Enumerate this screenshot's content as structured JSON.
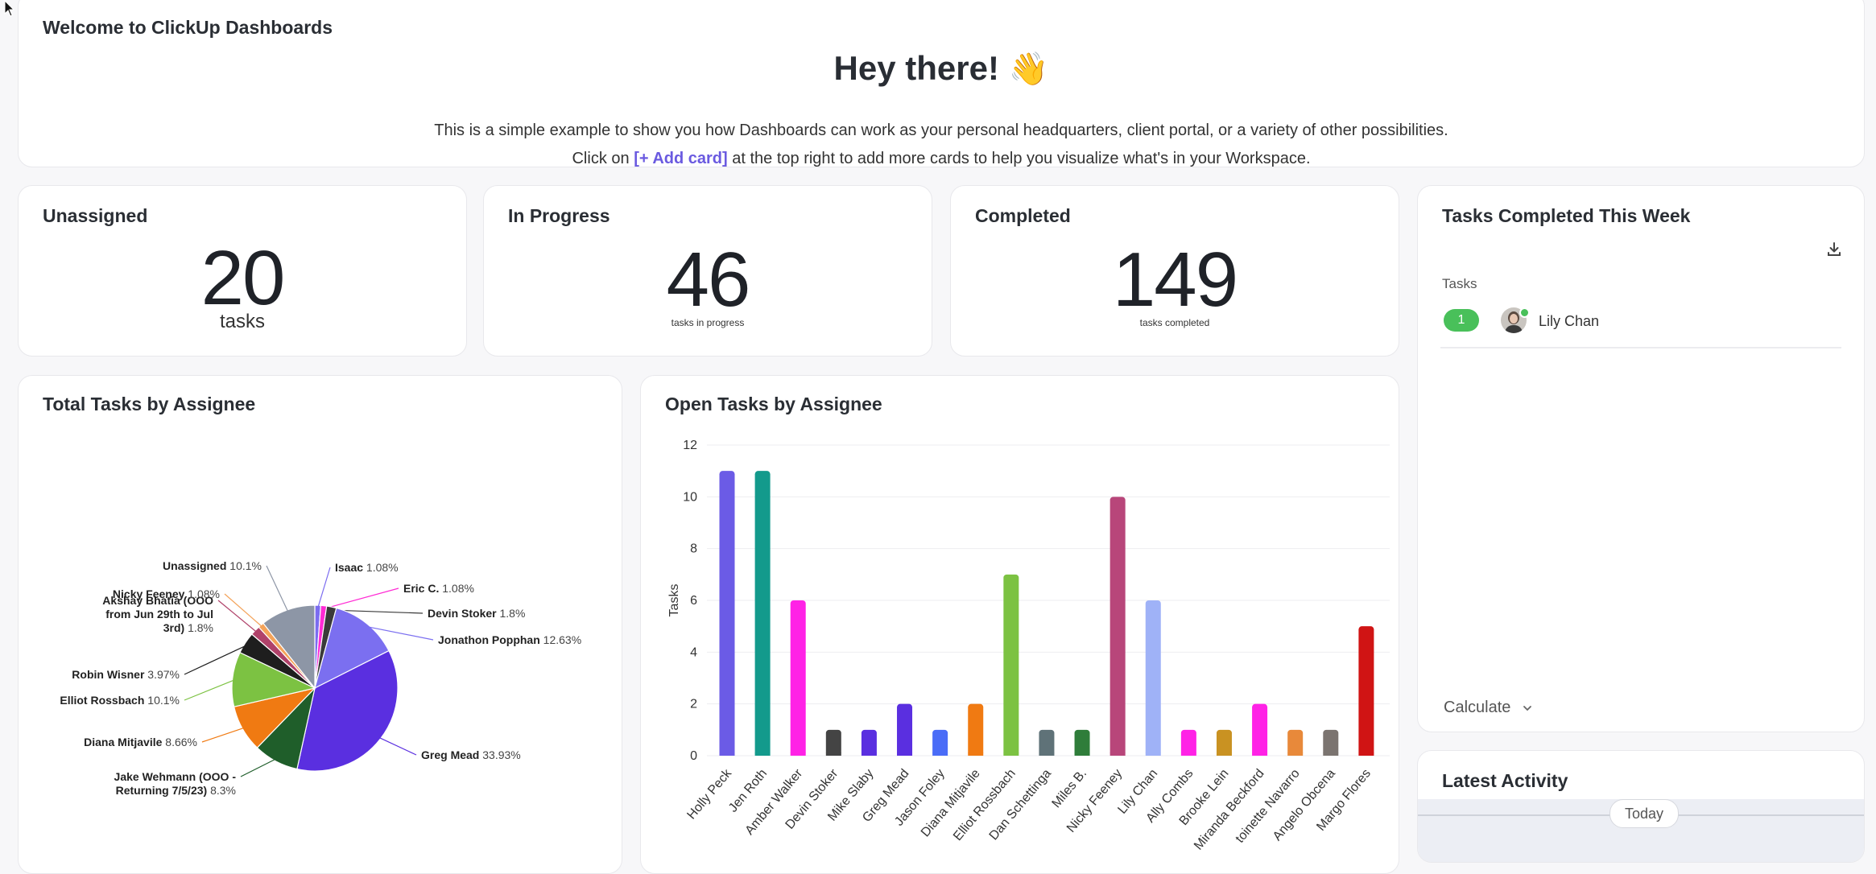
{
  "welcome": {
    "title": "Welcome to ClickUp Dashboards",
    "heading": "Hey there!",
    "emoji": "👋",
    "line1": "This is a simple example to show you how Dashboards can work as your personal headquarters, client portal, or a variety of other possibilities.",
    "line2_prefix": "Click on ",
    "line2_link": "[+ Add card]",
    "line2_suffix": " at the top right to add more cards to help you visualize what's in your Workspace."
  },
  "stats": {
    "unassigned": {
      "title": "Unassigned",
      "value": "20",
      "caption": "tasks"
    },
    "in_progress": {
      "title": "In Progress",
      "value": "46",
      "caption": "tasks in progress"
    },
    "completed": {
      "title": "Completed",
      "value": "149",
      "caption": "tasks completed"
    }
  },
  "tasks_completed_week": {
    "title": "Tasks Completed This Week",
    "column_label": "Tasks",
    "rows": [
      {
        "count": "1",
        "name": "Lily Chan"
      }
    ],
    "calculate_label": "Calculate",
    "icons": {
      "download": "download-icon",
      "chevron": "chevron-down-icon"
    }
  },
  "latest_activity": {
    "title": "Latest Activity",
    "today_label": "Today"
  },
  "total_by_assignee": {
    "title": "Total Tasks by Assignee"
  },
  "open_by_assignee": {
    "title": "Open Tasks by Assignee"
  },
  "chart_data": [
    {
      "type": "pie",
      "title": "Total Tasks by Assignee",
      "slices": [
        {
          "name": "Isaac",
          "pct_label": "1.08%",
          "value": 1.08,
          "color": "#7b6cf0"
        },
        {
          "name": "Eric C.",
          "pct_label": "1.08%",
          "value": 1.08,
          "color": "#ff2ad4"
        },
        {
          "name": "Devin Stoker",
          "pct_label": "1.8%",
          "value": 1.8,
          "color": "#3a3a3a"
        },
        {
          "name": "Jonathon Popphan",
          "pct_label": "12.63%",
          "value": 12.63,
          "color": "#7b6ff0"
        },
        {
          "name": "Greg Mead",
          "pct_label": "33.93%",
          "value": 33.93,
          "color": "#5a2fe0"
        },
        {
          "name": "Jake Wehmann (OOO - Returning 7/5/23)",
          "pct_label": "8.3%",
          "value": 8.3,
          "color": "#1f5e2a"
        },
        {
          "name": "Diana Mitjavile",
          "pct_label": "8.66%",
          "value": 8.66,
          "color": "#f07a12"
        },
        {
          "name": "Elliot Rossbach",
          "pct_label": "10.1%",
          "value": 10.1,
          "color": "#7cc242"
        },
        {
          "name": "Robin Wisner",
          "pct_label": "3.97%",
          "value": 3.97,
          "color": "#1e1e1e"
        },
        {
          "name": "Akshay Bhatia (OOO from Jun 29th to Jul 3rd)",
          "pct_label": "1.8%",
          "value": 1.8,
          "color": "#b0426a"
        },
        {
          "name": "Nicky Feeney",
          "pct_label": "1.08%",
          "value": 1.08,
          "color": "#f4a35a"
        },
        {
          "name": "Unassigned",
          "pct_label": "10.1%",
          "value": 10.1,
          "color": "#8d96a6"
        }
      ]
    },
    {
      "type": "bar",
      "title": "Open Tasks by Assignee",
      "ylabel": "Tasks",
      "ylim": [
        0,
        12
      ],
      "yticks": [
        0,
        2,
        4,
        6,
        8,
        10,
        12
      ],
      "categories": [
        "Holly Peck",
        "Jen Roth",
        "Amber Walker",
        "Devin Stoker",
        "Mike Slaby",
        "Greg Mead",
        "Jason Foley",
        "Diana Mitjavile",
        "Elliot Rossbach",
        "Dan Schettinga",
        "Miles B.",
        "Nicky Feeney",
        "Lily Chan",
        "Ally Combs",
        "Brooke Lein",
        "Miranda Beckford",
        "Antoinette Navarro",
        "Angelo Obcena",
        "Margo Flores"
      ],
      "tick_labels": [
        "Holly Peck",
        "Jen Roth",
        "Amber Walker",
        "Devin Stoker",
        "Mike Slaby",
        "Greg Mead",
        "Jason Foley",
        "Diana Mitjavile",
        "Elliot Rossbach",
        "Dan Schettinga",
        "Miles B.",
        "Nicky Feeney",
        "Lily Chan",
        "Ally Combs",
        "Brooke Lein",
        "Miranda Beckford",
        "toinette Navarro",
        "Angelo Obcena",
        "Margo Flores"
      ],
      "values": [
        11,
        11,
        6,
        1,
        1,
        2,
        1,
        2,
        7,
        1,
        1,
        10,
        6,
        1,
        1,
        2,
        1,
        1,
        5
      ],
      "colors": [
        "#6b5be6",
        "#139a8c",
        "#ff22e6",
        "#444444",
        "#5a2fe0",
        "#5a2fe0",
        "#4a6cf7",
        "#f07a12",
        "#7cc242",
        "#5f7278",
        "#2f7d3a",
        "#b8467a",
        "#9fb2f7",
        "#ff22e6",
        "#c99222",
        "#ff22e6",
        "#e8893a",
        "#7b7470",
        "#d01414"
      ]
    }
  ]
}
